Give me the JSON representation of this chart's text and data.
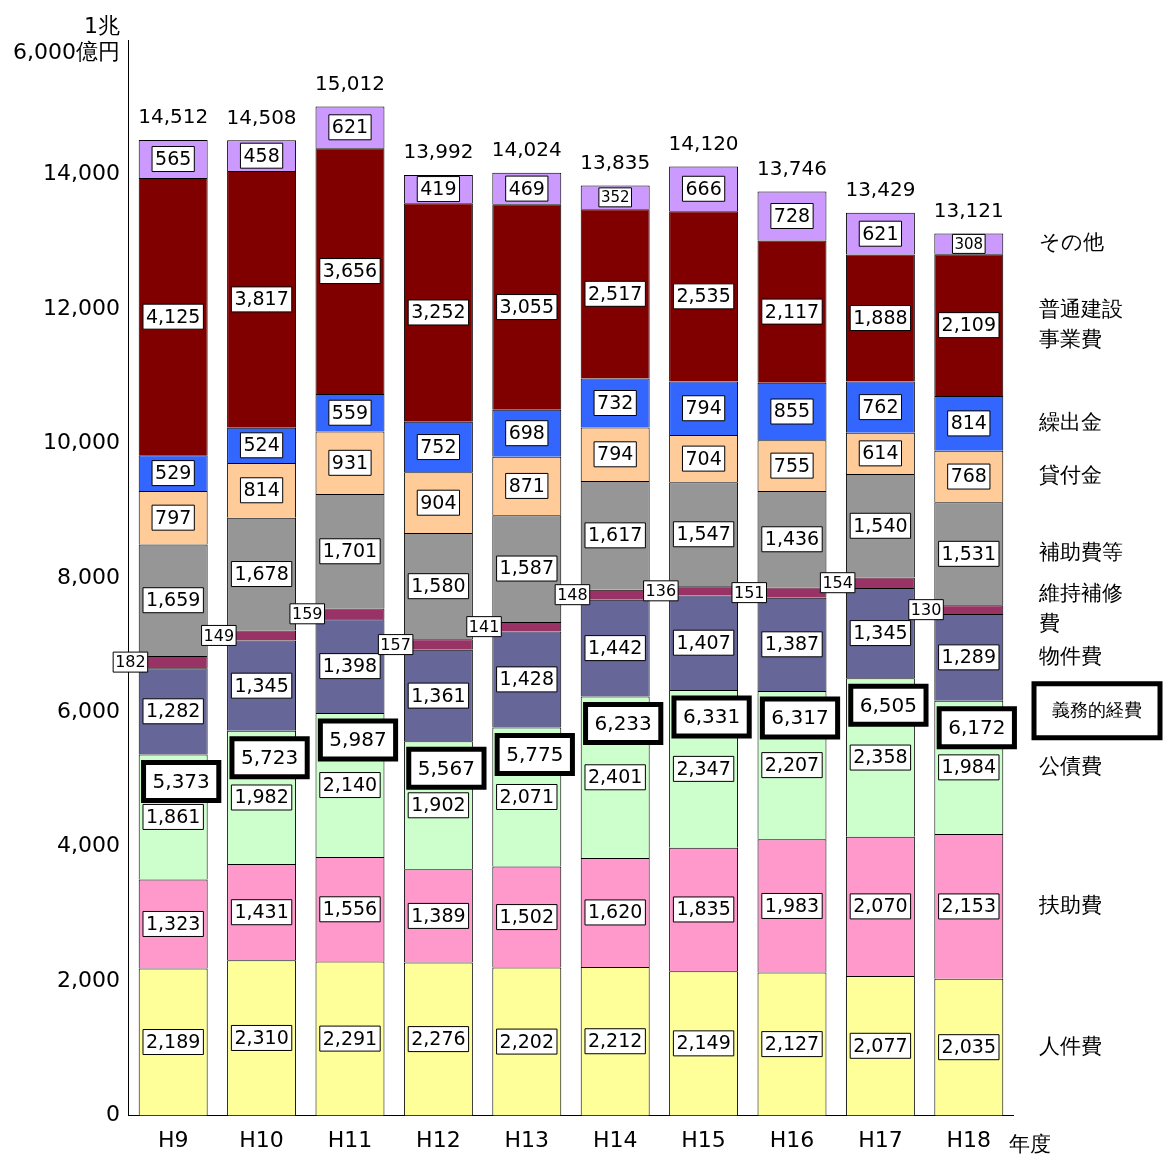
{
  "chart_data": {
    "type": "bar",
    "stacked": true,
    "xlabel": "年度",
    "categories": [
      "H9",
      "H10",
      "H11",
      "H12",
      "H13",
      "H14",
      "H15",
      "H16",
      "H17",
      "H18"
    ],
    "ylim": [
      0,
      16000
    ],
    "yticks": [
      0,
      {
        "value": 2000,
        "label": "2,000"
      },
      {
        "value": 4000,
        "label": "4,000"
      },
      {
        "value": 6000,
        "label": "6,000"
      },
      {
        "value": 8000,
        "label": "8,000"
      },
      {
        "value": 10000,
        "label": "10,000"
      },
      {
        "value": 12000,
        "label": "12,000"
      },
      {
        "value": 14000,
        "label": "14,000"
      },
      {
        "value": 16000,
        "label": "1兆\n6,000億円"
      }
    ],
    "grid": false,
    "legend": false,
    "data_labels": true,
    "series": [
      {
        "name": "人件費",
        "color": "#ffff99",
        "values": [
          2189,
          2310,
          2291,
          2276,
          2202,
          2212,
          2149,
          2127,
          2077,
          2035
        ],
        "value_labels": [
          "2,189",
          "2,310",
          "2,291",
          "2,276",
          "2,202",
          "2,212",
          "2,149",
          "2,127",
          "2,077",
          "2,035"
        ]
      },
      {
        "name": "扶助費",
        "color": "#ff99cc",
        "values": [
          1323,
          1431,
          1556,
          1389,
          1502,
          1620,
          1835,
          1983,
          2070,
          2153
        ],
        "value_labels": [
          "1,323",
          "1,431",
          "1,556",
          "1,389",
          "1,502",
          "1,620",
          "1,835",
          "1,983",
          "2,070",
          "2,153"
        ]
      },
      {
        "name": "公債費",
        "color": "#ccffcc",
        "values": [
          1861,
          1982,
          2140,
          1902,
          2071,
          2401,
          2347,
          2207,
          2358,
          1984
        ],
        "value_labels": [
          "1,861",
          "1,982",
          "2,140",
          "1,902",
          "2,071",
          "2,401",
          "2,347",
          "2,207",
          "2,358",
          "1,984"
        ]
      },
      {
        "name": "物件費",
        "color": "#666699",
        "values": [
          1282,
          1345,
          1398,
          1361,
          1428,
          1442,
          1407,
          1387,
          1345,
          1289
        ],
        "value_labels": [
          "1,282",
          "1,345",
          "1,398",
          "1,361",
          "1,428",
          "1,442",
          "1,407",
          "1,387",
          "1,345",
          "1,289"
        ]
      },
      {
        "name": "維持補修費",
        "color": "#993366",
        "values": [
          182,
          149,
          159,
          157,
          141,
          148,
          136,
          151,
          154,
          130
        ],
        "value_labels": [
          "182",
          "149",
          "159",
          "157",
          "141",
          "148",
          "136",
          "151",
          "154",
          "130"
        ]
      },
      {
        "name": "補助費等",
        "color": "#969696",
        "values": [
          1659,
          1678,
          1701,
          1580,
          1587,
          1617,
          1547,
          1436,
          1540,
          1531
        ],
        "value_labels": [
          "1,659",
          "1,678",
          "1,701",
          "1,580",
          "1,587",
          "1,617",
          "1,547",
          "1,436",
          "1,540",
          "1,531"
        ]
      },
      {
        "name": "貸付金",
        "color": "#ffcc99",
        "values": [
          797,
          814,
          931,
          904,
          871,
          794,
          704,
          755,
          614,
          768
        ],
        "value_labels": [
          "797",
          "814",
          "931",
          "904",
          "871",
          "794",
          "704",
          "755",
          "614",
          "768"
        ]
      },
      {
        "name": "繰出金",
        "color": "#3366ff",
        "values": [
          529,
          524,
          559,
          752,
          698,
          732,
          794,
          855,
          762,
          814
        ],
        "value_labels": [
          "529",
          "524",
          "559",
          "752",
          "698",
          "732",
          "794",
          "855",
          "762",
          "814"
        ]
      },
      {
        "name": "普通建設事業費",
        "color": "#800000",
        "values": [
          4125,
          3817,
          3656,
          3252,
          3055,
          2517,
          2535,
          2117,
          1888,
          2109
        ],
        "value_labels": [
          "4,125",
          "3,817",
          "3,656",
          "3,252",
          "3,055",
          "2,517",
          "2,535",
          "2,117",
          "1,888",
          "2,109"
        ]
      },
      {
        "name": "その他",
        "color": "#cc99ff",
        "values": [
          565,
          458,
          621,
          419,
          469,
          352,
          666,
          728,
          621,
          308
        ],
        "value_labels": [
          "565",
          "458",
          "621",
          "419",
          "469",
          "352",
          "666",
          "728",
          "621",
          "308"
        ]
      }
    ],
    "totals": [
      "14,512",
      "14,508",
      "15,012",
      "13,992",
      "14,024",
      "13,835",
      "14,120",
      "13,746",
      "13,429",
      "13,121"
    ],
    "annotations": [
      {
        "text": "5,373",
        "x": "H9",
        "y": 5373
      },
      {
        "text": "5,723",
        "x": "H10",
        "y": 5723
      },
      {
        "text": "5,987",
        "x": "H11",
        "y": 5987
      },
      {
        "text": "5,567",
        "x": "H12",
        "y": 5567
      },
      {
        "text": "5,775",
        "x": "H13",
        "y": 5775
      },
      {
        "text": "6,233",
        "x": "H14",
        "y": 6233
      },
      {
        "text": "6,331",
        "x": "H15",
        "y": 6331
      },
      {
        "text": "6,317",
        "x": "H16",
        "y": 6317
      },
      {
        "text": "6,505",
        "x": "H17",
        "y": 6505
      },
      {
        "text": "6,172",
        "x": "H18",
        "y": 6172
      },
      "義務的経費"
    ]
  }
}
